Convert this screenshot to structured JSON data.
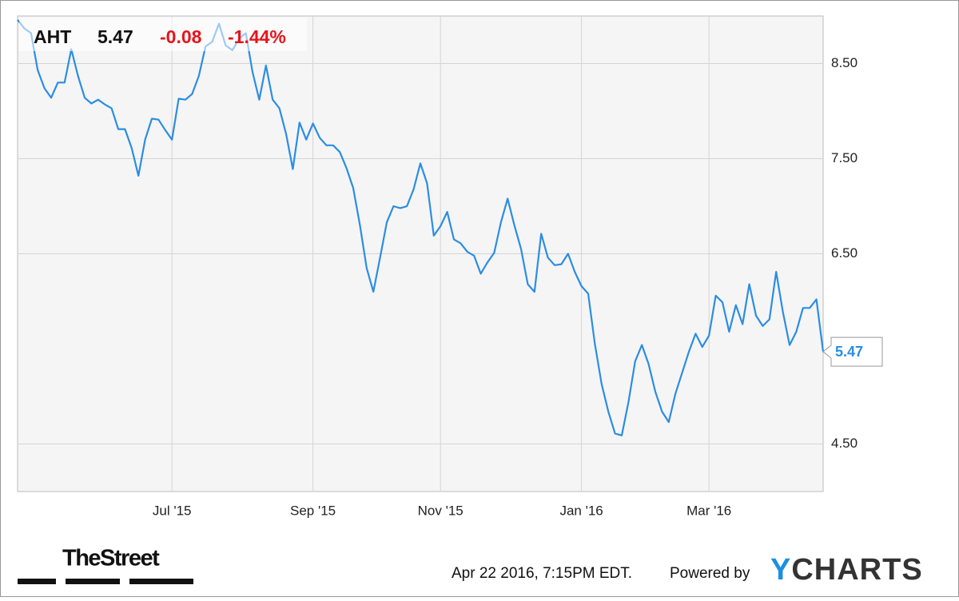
{
  "header": {
    "ticker": "AHT",
    "price": "5.47",
    "change": "-0.08",
    "change_percent": "-1.44%"
  },
  "footer": {
    "timestamp": "Apr 22 2016, 7:15PM EDT.",
    "powered_by": "Powered by",
    "logo": "YCHARTS",
    "publisher": "TheStreet"
  },
  "chart_data": {
    "type": "line",
    "color": "#2b8de3",
    "grid": true,
    "categories": [
      null,
      null,
      null,
      null,
      null,
      null,
      null,
      null,
      null,
      null,
      null,
      null,
      null,
      null,
      null,
      null,
      null,
      null,
      null,
      null,
      null,
      null,
      null,
      "Jul '15",
      null,
      null,
      null,
      null,
      null,
      null,
      null,
      null,
      null,
      null,
      null,
      null,
      null,
      null,
      null,
      null,
      null,
      null,
      null,
      null,
      "Sep '15",
      null,
      null,
      null,
      null,
      null,
      null,
      null,
      null,
      null,
      null,
      null,
      null,
      null,
      null,
      null,
      null,
      null,
      null,
      "Nov '15",
      null,
      null,
      null,
      null,
      null,
      null,
      null,
      null,
      null,
      null,
      null,
      null,
      null,
      null,
      null,
      null,
      null,
      null,
      null,
      null,
      "Jan '16",
      null,
      null,
      null,
      null,
      null,
      null,
      null,
      null,
      null,
      null,
      null,
      null,
      null,
      null,
      null,
      null,
      null,
      null,
      "Mar '16",
      null,
      null,
      null,
      null,
      null,
      null,
      null,
      null,
      null,
      null,
      null,
      null,
      null,
      null,
      null,
      null,
      null
    ],
    "values": [
      8.96,
      8.87,
      8.82,
      8.43,
      8.24,
      8.14,
      8.3,
      8.3,
      8.65,
      8.37,
      8.14,
      8.08,
      8.12,
      8.07,
      8.03,
      7.81,
      7.81,
      7.61,
      7.32,
      7.7,
      7.92,
      7.91,
      7.8,
      7.7,
      8.13,
      8.12,
      8.18,
      8.37,
      8.68,
      8.73,
      8.92,
      8.69,
      8.64,
      8.76,
      8.82,
      8.41,
      8.12,
      8.48,
      8.12,
      8.03,
      7.76,
      7.39,
      7.88,
      7.7,
      7.87,
      7.72,
      7.64,
      7.64,
      7.57,
      7.4,
      7.19,
      6.8,
      6.35,
      6.1,
      6.46,
      6.83,
      7.0,
      6.98,
      7.0,
      7.18,
      7.45,
      7.24,
      6.69,
      6.79,
      6.94,
      6.65,
      6.61,
      6.52,
      6.48,
      6.29,
      6.41,
      6.51,
      6.83,
      7.08,
      6.8,
      6.55,
      6.18,
      6.1,
      6.71,
      6.46,
      6.38,
      6.39,
      6.5,
      6.31,
      6.16,
      6.08,
      5.55,
      5.13,
      4.84,
      4.61,
      4.59,
      4.94,
      5.37,
      5.54,
      5.34,
      5.05,
      4.84,
      4.73,
      5.03,
      5.25,
      5.47,
      5.66,
      5.52,
      5.64,
      6.06,
      5.99,
      5.68,
      5.96,
      5.76,
      6.18,
      5.85,
      5.74,
      5.81,
      6.31,
      5.89,
      5.54,
      5.68,
      5.93,
      5.93,
      6.02,
      5.47
    ],
    "ylim": [
      4.0,
      9.0
    ],
    "yticks": [
      {
        "value": 4.5,
        "label": "4.50"
      },
      {
        "value": 6.5,
        "label": "6.50"
      },
      {
        "value": 7.5,
        "label": "7.50"
      },
      {
        "value": 8.5,
        "label": "8.50"
      }
    ]
  }
}
